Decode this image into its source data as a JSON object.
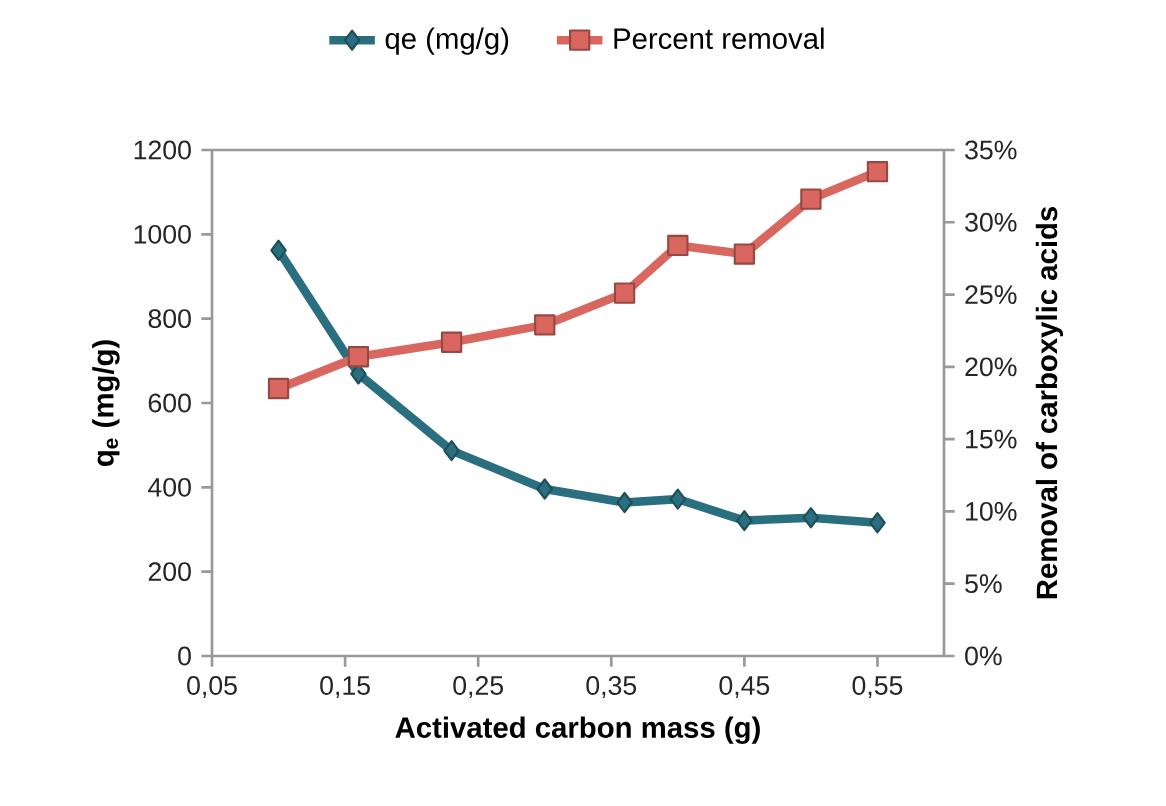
{
  "chart_data": {
    "type": "line",
    "xlabel": "Activated carbon mass (g)",
    "ylabel": "q$_{e}$ (mg/g)",
    "y2label": "Removal of carboxylic acids",
    "x": [
      0.1,
      0.16,
      0.23,
      0.3,
      0.36,
      0.4,
      0.45,
      0.5,
      0.55
    ],
    "series": [
      {
        "name": "qe (mg/g)",
        "color": "#2a6f7f",
        "marker": "diamond",
        "values": [
          962,
          669,
          487,
          396,
          364,
          372,
          321,
          328,
          316
        ]
      },
      {
        "name": "Percent removal",
        "color": "#d9675f",
        "marker": "square",
        "axis": "y2",
        "values": [
          18.5,
          20.7,
          21.7,
          22.9,
          25.1,
          28.4,
          27.8,
          31.6,
          33.5
        ]
      }
    ],
    "xlim": [
      0.05,
      0.6
    ],
    "xticks": [
      {
        "value": 0.05,
        "label": "0,05"
      },
      {
        "value": 0.15,
        "label": "0,15"
      },
      {
        "value": 0.25,
        "label": "0,25"
      },
      {
        "value": 0.35,
        "label": "0,35"
      },
      {
        "value": 0.45,
        "label": "0,45"
      },
      {
        "value": 0.55,
        "label": "0,55"
      }
    ],
    "ylim": [
      0,
      1200
    ],
    "yticks": [
      0,
      200,
      400,
      600,
      800,
      1000,
      1200
    ],
    "y2lim": [
      0,
      35
    ],
    "y2ticks": [
      {
        "value": 0,
        "label": "0%"
      },
      {
        "value": 5,
        "label": "5%"
      },
      {
        "value": 10,
        "label": "10%"
      },
      {
        "value": 15,
        "label": "15%"
      },
      {
        "value": 20,
        "label": "20%"
      },
      {
        "value": 25,
        "label": "25%"
      },
      {
        "value": 30,
        "label": "30%"
      },
      {
        "value": 35,
        "label": "35%"
      }
    ],
    "grid": false,
    "legend": "top",
    "line_style": "solid"
  }
}
